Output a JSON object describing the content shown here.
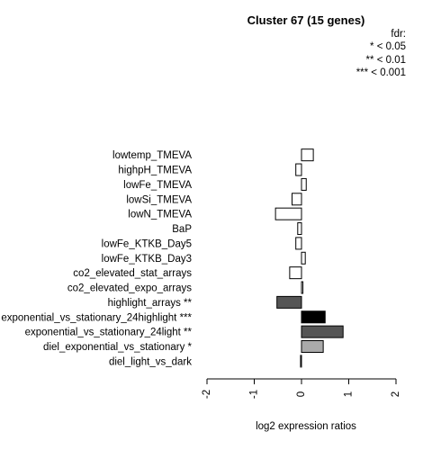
{
  "chart_data": {
    "type": "bar",
    "orientation": "horizontal",
    "title": "Cluster 67 (15 genes)",
    "xlabel": "log2 expression ratios",
    "ylabel": "",
    "xlim": [
      -2,
      2
    ],
    "xticks": [
      "-2",
      "-1",
      "0",
      "1",
      "2"
    ],
    "legend": {
      "title": "fdr:",
      "entries": [
        "* < 0.05",
        "** < 0.01",
        "*** < 0.001"
      ],
      "placement": "top-right"
    },
    "categories": [
      "lowtemp_TMEVA",
      "highpH_TMEVA",
      "lowFe_TMEVA",
      "lowSi_TMEVA",
      "lowN_TMEVA",
      "BaP",
      "lowFe_KTKB_Day5",
      "lowFe_KTKB_Day3",
      "co2_elevated_stat_arrays",
      "co2_elevated_expo_arrays",
      "highlight_arrays **",
      "exponential_vs_stationary_24highlight ***",
      "exponential_vs_stationary_24light **",
      "diel_exponential_vs_stationary *",
      "diel_light_vs_dark"
    ],
    "values": [
      0.25,
      -0.12,
      0.1,
      -0.2,
      -0.55,
      -0.08,
      -0.12,
      0.08,
      -0.25,
      0.03,
      -0.52,
      0.5,
      0.88,
      0.46,
      -0.02
    ],
    "bar_colors": [
      "#ffffff",
      "#ffffff",
      "#ffffff",
      "#ffffff",
      "#ffffff",
      "#ffffff",
      "#ffffff",
      "#ffffff",
      "#ffffff",
      "#ffffff",
      "#555555",
      "#000000",
      "#555555",
      "#aaaaaa",
      "#ffffff"
    ]
  }
}
